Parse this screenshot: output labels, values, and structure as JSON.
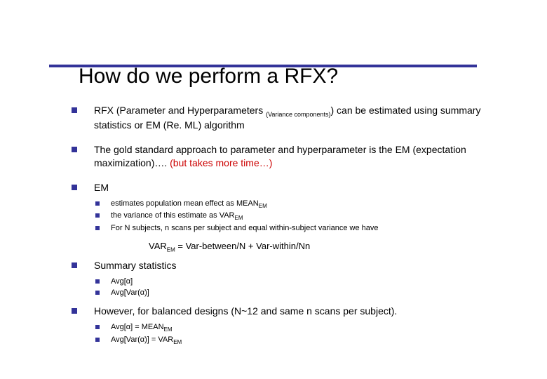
{
  "colors": {
    "accent": "#333399",
    "text": "#000000",
    "highlight": "#cc0000",
    "background": "#ffffff"
  },
  "typography": {
    "title_fontsize": 30,
    "body_fontsize": 14,
    "sub_fontsize": 11,
    "font_family": "Verdana"
  },
  "title": "How do we perform a RFX?",
  "bullets": [
    {
      "pre": "RFX (Parameter and Hyperparameters ",
      "sub": "(Variance components)",
      "post": ") can be estimated using summary statistics or EM (Re. ML) algorithm"
    },
    {
      "pre": "The gold standard approach to parameter and hyperparameter is the EM (expectation maximization)…. ",
      "red": "(but takes more time…)"
    },
    {
      "pre": "EM",
      "subs": [
        {
          "t1": "estimates population mean effect as MEAN",
          "s1": "EM"
        },
        {
          "t1": "the variance of this estimate as VAR",
          "s1": "EM"
        },
        {
          "t1": "For N subjects, n scans per subject and equal within-subject variance we have"
        }
      ],
      "formula": {
        "p1": "VAR",
        "s1": "EM",
        "p2": " = Var-between/N + Var-within/Nn"
      }
    },
    {
      "pre": "Summary statistics",
      "subs": [
        {
          "t1": "Avg[α]"
        },
        {
          "t1": "Avg[Var(α)]"
        }
      ]
    },
    {
      "pre": "However, for balanced designs (N~12 and same n scans per subject).",
      "subs": [
        {
          "t1": "Avg[α] = MEAN",
          "s1": "EM"
        },
        {
          "t1": "Avg[Var(α)] = VAR",
          "s1": "EM"
        }
      ]
    }
  ]
}
